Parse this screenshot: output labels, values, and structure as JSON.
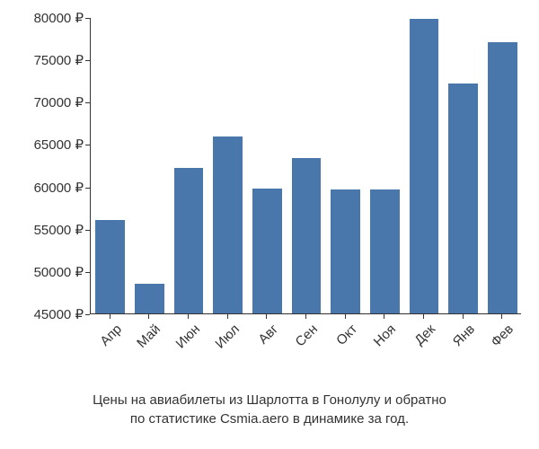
{
  "chart": {
    "type": "bar",
    "categories": [
      "Апр",
      "Май",
      "Июн",
      "Июл",
      "Авг",
      "Сен",
      "Окт",
      "Ноя",
      "Дек",
      "Янв",
      "Фев"
    ],
    "values": [
      56000,
      48500,
      62200,
      65900,
      59700,
      63300,
      59600,
      59600,
      79800,
      72200,
      77000
    ],
    "bar_color": "#4a77ab",
    "background_color": "#ffffff",
    "axis_color": "#333333",
    "ymin": 45000,
    "ymax": 80000,
    "ytick_step": 5000,
    "ytick_suffix": " ₽",
    "bar_width_ratio": 0.75,
    "label_fontsize": 15,
    "x_label_rotation": -45
  },
  "caption": {
    "line1": "Цены на авиабилеты из Шарлотта в Гонолулу и обратно",
    "line2": "по статистике Csmia.aero в динамике за год."
  }
}
